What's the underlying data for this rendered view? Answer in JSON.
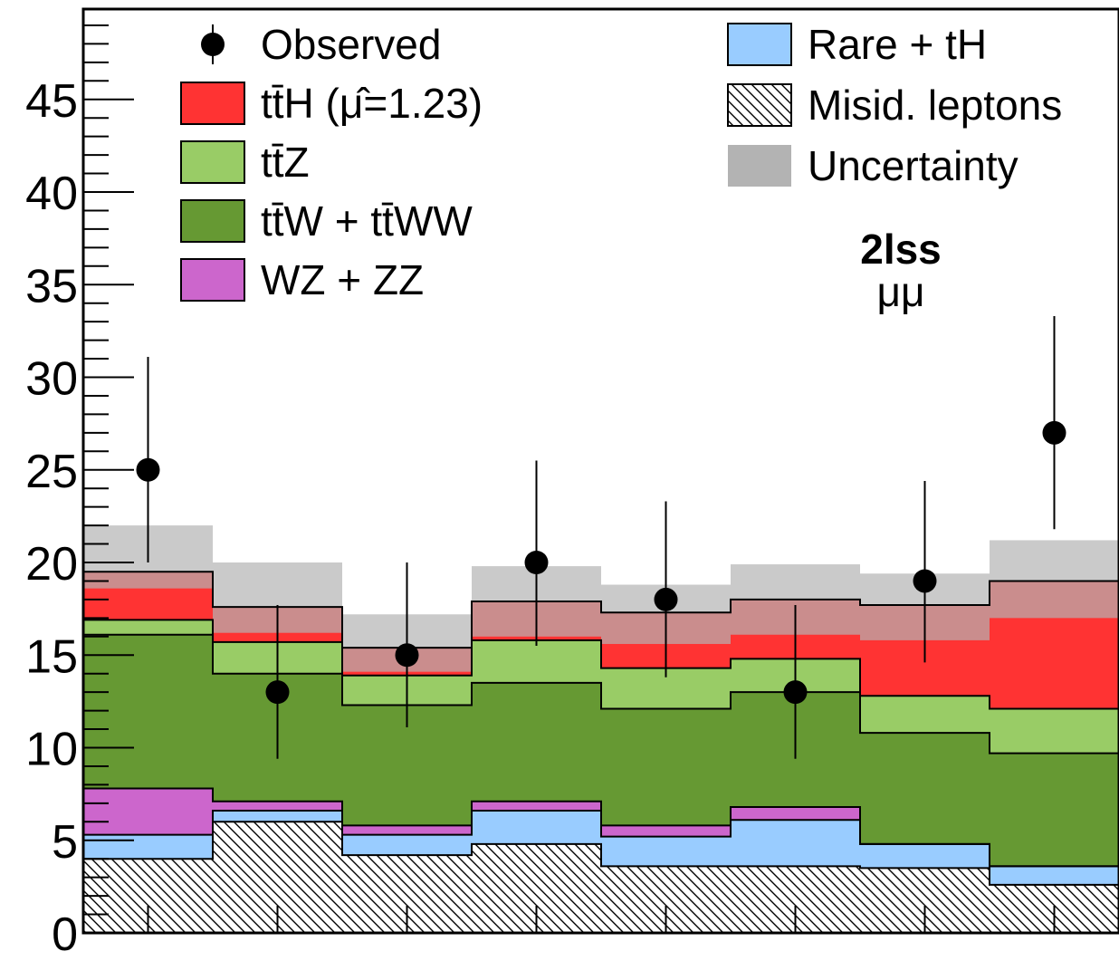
{
  "chart_data": {
    "type": "bar",
    "stacked": true,
    "annotation": {
      "title": "2lss",
      "subtitle": "μμ"
    },
    "ylim": [
      0,
      50
    ],
    "y_ticks": [
      "0",
      "5",
      "10",
      "15",
      "20",
      "25",
      "30",
      "35",
      "40",
      "45"
    ],
    "bins": 8,
    "grid": false,
    "legend_placement": "top",
    "colors": {
      "misid": "#ffffff",
      "rare_th": "#99ccff",
      "wz_zz": "#cc66cc",
      "ttw": "#669933",
      "ttz": "#99cc66",
      "tth": "#ff3333",
      "uncertainty": "#b3b3b3",
      "observed": "#000000"
    },
    "series": [
      {
        "name": "Misid. leptons",
        "key": "misid",
        "values": [
          4.0,
          6.0,
          4.2,
          4.8,
          3.6,
          3.6,
          3.5,
          2.6
        ]
      },
      {
        "name": "Rare + tH",
        "key": "rare_th",
        "values": [
          1.3,
          0.6,
          1.1,
          1.8,
          1.6,
          2.5,
          1.3,
          1.0
        ]
      },
      {
        "name": "WZ + ZZ",
        "key": "wz_zz",
        "values": [
          2.5,
          0.5,
          0.5,
          0.5,
          0.6,
          0.7,
          0.0,
          0.0
        ]
      },
      {
        "name": "tt̄W + tt̄WW",
        "key": "ttw",
        "values": [
          8.3,
          6.9,
          6.5,
          6.4,
          6.3,
          6.2,
          6.0,
          6.1
        ]
      },
      {
        "name": "tt̄Z",
        "key": "ttz",
        "values": [
          0.8,
          1.7,
          1.6,
          2.3,
          2.2,
          1.8,
          2.0,
          2.4
        ]
      },
      {
        "name": "tt̄H (μ̂=1.23)",
        "key": "tth",
        "values": [
          2.6,
          1.9,
          1.5,
          2.1,
          3.0,
          3.2,
          4.9,
          6.9
        ]
      }
    ],
    "uncertainty": {
      "name": "Uncertainty",
      "key": "uncertainty",
      "low": [
        18.6,
        16.2,
        14.1,
        16.0,
        15.6,
        16.1,
        15.8,
        17.0
      ],
      "high": [
        22.0,
        20.0,
        17.2,
        19.8,
        18.8,
        19.9,
        19.4,
        21.2
      ]
    },
    "observed": {
      "name": "Observed",
      "key": "observed",
      "values": [
        25,
        13,
        15,
        20,
        18,
        13,
        19,
        27
      ],
      "err_low": [
        5.0,
        3.6,
        3.9,
        4.5,
        4.2,
        3.6,
        4.4,
        5.2
      ],
      "err_high": [
        6.1,
        4.7,
        5.0,
        5.5,
        5.3,
        4.7,
        5.4,
        6.3
      ]
    },
    "legend": {
      "left": [
        "Observed",
        "tt̄H (μ̂=1.23)",
        "tt̄Z",
        "tt̄W + tt̄WW",
        "WZ + ZZ"
      ],
      "right": [
        "Rare + tH",
        "Misid. leptons",
        "Uncertainty"
      ]
    }
  }
}
